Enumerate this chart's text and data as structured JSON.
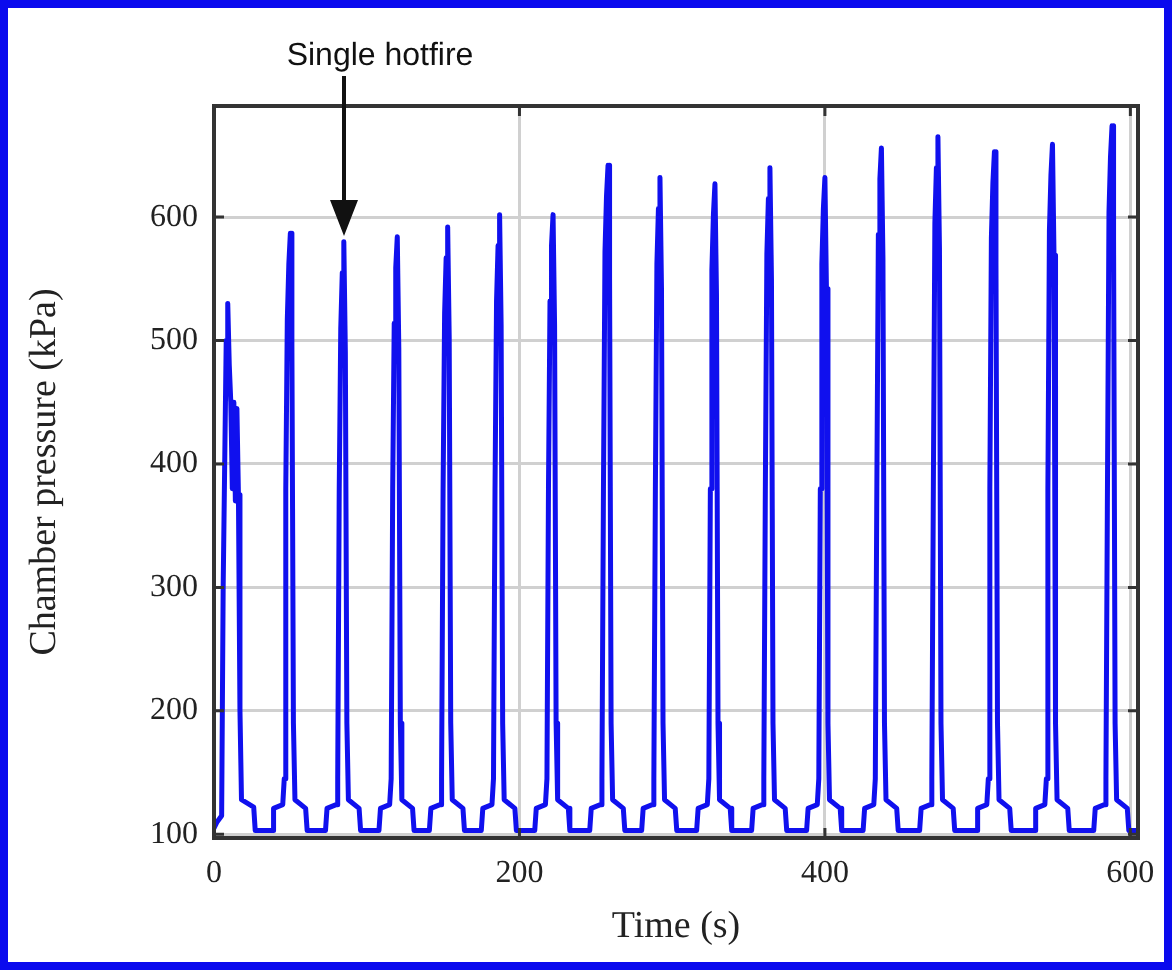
{
  "chart_data": {
    "type": "line",
    "xlabel": "Time (s)",
    "ylabel": "Chamber pressure (kPa)",
    "annotations": [
      "Single hotfire"
    ],
    "xlim": [
      0,
      605
    ],
    "xticks": [
      0,
      200,
      400,
      600
    ],
    "ylim": [
      97,
      690
    ],
    "yticks": [
      100,
      200,
      300,
      400,
      500,
      600
    ],
    "grid": true,
    "legend": false,
    "marker": "none",
    "line_style": "solid",
    "series": [
      {
        "color": "#1010ee",
        "x": [
          0,
          2,
          5,
          6,
          8,
          9,
          10,
          11,
          12,
          13,
          14,
          15,
          16,
          17,
          18,
          26,
          27,
          38,
          39,
          45,
          46,
          47,
          48,
          49,
          50,
          51,
          52,
          53,
          60,
          61,
          73,
          74,
          80,
          81,
          82,
          83,
          84,
          85,
          86,
          87,
          88,
          95,
          96,
          108,
          109,
          115,
          116,
          117,
          118,
          119,
          120,
          121,
          122,
          123,
          130,
          131,
          141,
          142,
          148,
          149,
          150,
          151,
          152,
          153,
          154,
          155,
          156,
          163,
          164,
          175,
          176,
          182,
          183,
          184,
          185,
          186,
          187,
          188,
          189,
          190,
          197,
          198,
          210,
          211,
          217,
          218,
          219,
          220,
          221,
          222,
          223,
          224,
          225,
          232,
          233,
          246,
          247,
          253,
          254,
          255,
          256,
          257,
          258,
          259,
          260,
          261,
          268,
          269,
          280,
          281,
          287,
          288,
          289,
          290,
          291,
          292,
          293,
          294,
          295,
          302,
          303,
          316,
          317,
          323,
          324,
          325,
          326,
          327,
          328,
          329,
          330,
          331,
          338,
          339,
          352,
          353,
          359,
          360,
          361,
          362,
          363,
          364,
          365,
          366,
          367,
          374,
          375,
          388,
          389,
          395,
          396,
          397,
          398,
          399,
          400,
          401,
          402,
          403,
          410,
          411,
          425,
          426,
          432,
          433,
          434,
          435,
          436,
          437,
          438,
          439,
          440,
          447,
          448,
          462,
          463,
          469,
          470,
          471,
          472,
          473,
          474,
          475,
          476,
          477,
          484,
          485,
          499,
          500,
          506,
          507,
          508,
          509,
          510,
          511,
          512,
          513,
          514,
          521,
          522,
          537,
          538,
          544,
          545,
          546,
          547,
          548,
          549,
          550,
          551,
          552,
          559,
          560,
          576,
          577,
          583,
          584,
          585,
          586,
          587,
          588,
          589,
          590,
          591,
          598,
          599,
          604
        ],
        "values": [
          105,
          110,
          115,
          300,
          500,
          530,
          480,
          450,
          380,
          450,
          370,
          445,
          375,
          200,
          128,
          122,
          103,
          103,
          121,
          124,
          145,
          380,
          517,
          562,
          587,
          497,
          190,
          128,
          121,
          103,
          103,
          121,
          124,
          145,
          380,
          510,
          555,
          580,
          490,
          190,
          128,
          121,
          103,
          103,
          121,
          124,
          145,
          380,
          514,
          559,
          584,
          494,
          190,
          128,
          121,
          103,
          103,
          121,
          124,
          145,
          380,
          522,
          567,
          592,
          502,
          190,
          128,
          121,
          103,
          103,
          121,
          124,
          145,
          380,
          532,
          577,
          602,
          512,
          190,
          128,
          121,
          103,
          103,
          121,
          124,
          145,
          380,
          532,
          577,
          602,
          512,
          190,
          128,
          121,
          103,
          103,
          121,
          124,
          145,
          380,
          572,
          617,
          642,
          552,
          190,
          128,
          121,
          103,
          103,
          121,
          124,
          145,
          380,
          562,
          607,
          632,
          542,
          190,
          128,
          121,
          103,
          103,
          121,
          124,
          145,
          380,
          557,
          602,
          627,
          537,
          190,
          128,
          121,
          103,
          103,
          121,
          124,
          145,
          380,
          570,
          615,
          640,
          550,
          190,
          128,
          121,
          103,
          103,
          121,
          124,
          145,
          380,
          562,
          607,
          632,
          542,
          190,
          128,
          121,
          103,
          103,
          121,
          124,
          145,
          380,
          586,
          631,
          656,
          566,
          190,
          128,
          121,
          103,
          103,
          121,
          124,
          145,
          380,
          595,
          640,
          665,
          575,
          190,
          128,
          121,
          103,
          103,
          121,
          124,
          145,
          380,
          583,
          628,
          653,
          563,
          190,
          128,
          121,
          103,
          103,
          121,
          124,
          145,
          380,
          589,
          634,
          659,
          569,
          190,
          128,
          121,
          103,
          103,
          121,
          124,
          145,
          380,
          604,
          649,
          674,
          584,
          190,
          128,
          121,
          103,
          103
        ]
      }
    ]
  }
}
